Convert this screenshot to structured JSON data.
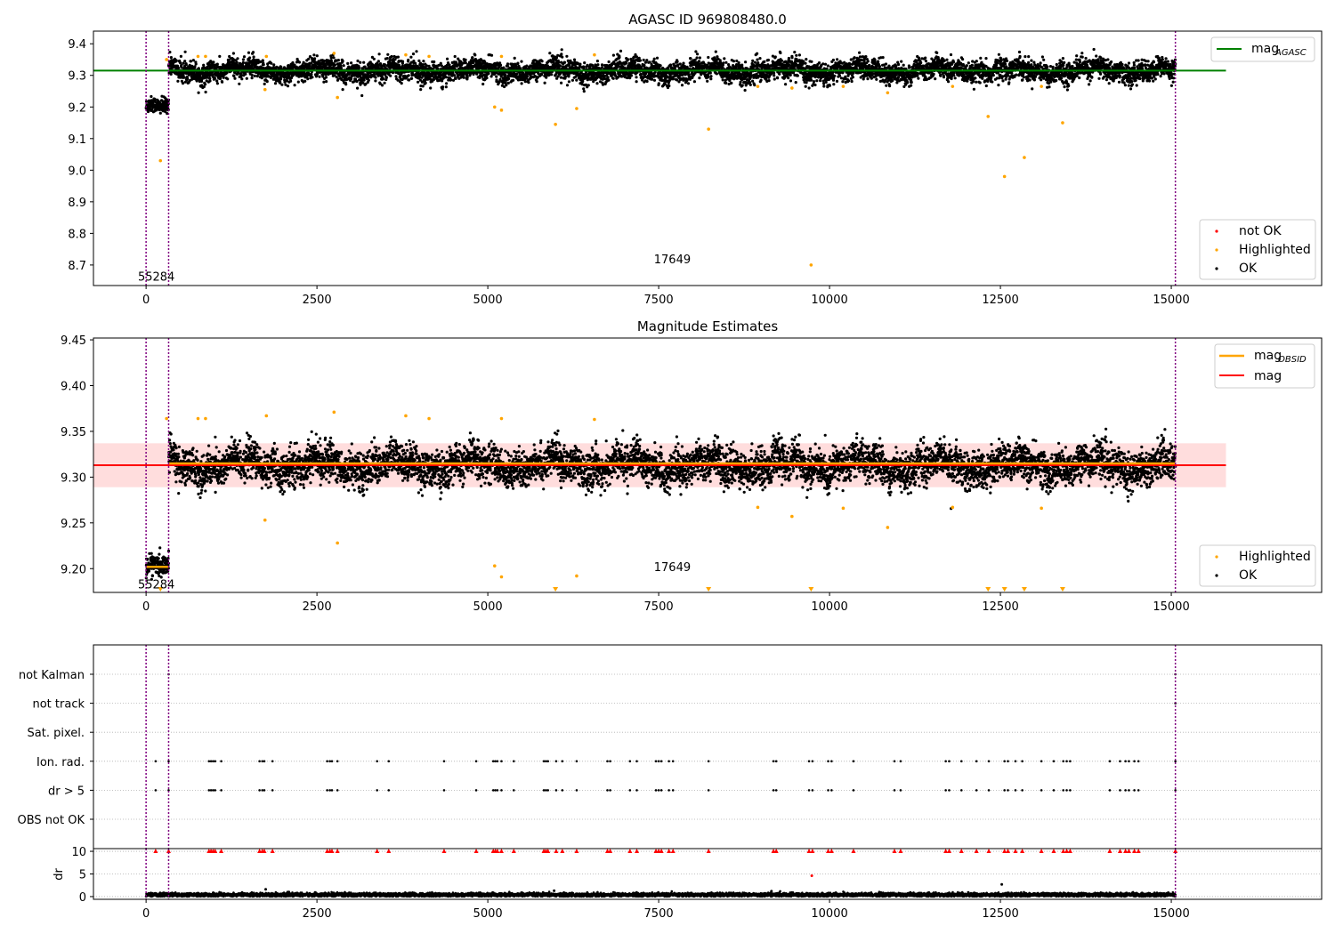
{
  "figure": {
    "colors": {
      "ok": "#000000",
      "highlighted": "#ffa500",
      "not_ok": "#ff0000",
      "agasc_line": "#008000",
      "obsid_line": "#ffa500",
      "mag_line": "#ff0000",
      "mag_band": "#ffdddd",
      "obsid_boundary": "#800080",
      "grid": "#b0b0b0"
    }
  },
  "chart_data": [
    {
      "id": "top",
      "type": "scatter",
      "title": "AGASC ID 969808480.0",
      "xlabel": "",
      "ylabel": "",
      "xlim": [
        -770,
        17200
      ],
      "ylim": [
        8.635,
        9.44
      ],
      "x_ticks": [
        0,
        2500,
        5000,
        7500,
        10000,
        12500,
        15000
      ],
      "x_tick_labels": [
        "0",
        "2500",
        "5000",
        "7500",
        "10000",
        "12500",
        "15000"
      ],
      "y_ticks": [
        8.7,
        8.8,
        8.9,
        9.0,
        9.1,
        9.2,
        9.3,
        9.4
      ],
      "y_tick_labels": [
        "8.7",
        "8.8",
        "8.9",
        "9.0",
        "9.1",
        "9.2",
        "9.3",
        "9.4"
      ],
      "obsid_boundaries": [
        0,
        330,
        15060
      ],
      "obsid_labels": [
        {
          "text": "55284",
          "x": 150,
          "y": 8.665
        },
        {
          "text": "17649",
          "x": 7700,
          "y": 8.72
        }
      ],
      "mag_agasc": 9.315,
      "mag_agasc_xrange": [
        -770,
        15800
      ],
      "segments": [
        {
          "x_start": 0,
          "x_end": 330,
          "center": 9.2,
          "spread": 0.022
        },
        {
          "x_start": 330,
          "x_end": 15060,
          "center": 9.315,
          "spread": 0.03
        }
      ],
      "highlighted_points": [
        {
          "x": 210,
          "y": 9.03
        },
        {
          "x": 300,
          "y": 9.35
        },
        {
          "x": 760,
          "y": 9.36
        },
        {
          "x": 870,
          "y": 9.36
        },
        {
          "x": 1740,
          "y": 9.255
        },
        {
          "x": 1760,
          "y": 9.36
        },
        {
          "x": 2750,
          "y": 9.37
        },
        {
          "x": 2800,
          "y": 9.23
        },
        {
          "x": 3800,
          "y": 9.365
        },
        {
          "x": 4140,
          "y": 9.36
        },
        {
          "x": 5100,
          "y": 9.2
        },
        {
          "x": 5200,
          "y": 9.19
        },
        {
          "x": 5200,
          "y": 9.36
        },
        {
          "x": 5990,
          "y": 9.145
        },
        {
          "x": 6300,
          "y": 9.195
        },
        {
          "x": 6560,
          "y": 9.365
        },
        {
          "x": 8230,
          "y": 9.13
        },
        {
          "x": 8950,
          "y": 9.265
        },
        {
          "x": 9450,
          "y": 9.26
        },
        {
          "x": 9730,
          "y": 8.7
        },
        {
          "x": 10200,
          "y": 9.265
        },
        {
          "x": 10850,
          "y": 9.245
        },
        {
          "x": 11800,
          "y": 9.265
        },
        {
          "x": 12320,
          "y": 9.17
        },
        {
          "x": 12560,
          "y": 8.98
        },
        {
          "x": 12850,
          "y": 9.04
        },
        {
          "x": 13100,
          "y": 9.265
        },
        {
          "x": 13410,
          "y": 9.15
        }
      ],
      "legends": [
        {
          "position": "upper right",
          "entries": [
            {
              "kind": "line",
              "color_key": "agasc_line",
              "label": "mag",
              "sub": "AGASC"
            }
          ]
        },
        {
          "position": "lower right",
          "entries": [
            {
              "kind": "dot",
              "color_key": "not_ok",
              "label": "not OK"
            },
            {
              "kind": "dot",
              "color_key": "highlighted",
              "label": "Highlighted"
            },
            {
              "kind": "dot",
              "color_key": "ok",
              "label": "OK"
            }
          ]
        }
      ]
    },
    {
      "id": "middle",
      "type": "scatter",
      "title": "Magnitude Estimates",
      "xlabel": "",
      "ylabel": "",
      "xlim": [
        -770,
        17200
      ],
      "ylim": [
        9.174,
        9.452
      ],
      "x_ticks": [
        0,
        2500,
        5000,
        7500,
        10000,
        12500,
        15000
      ],
      "x_tick_labels": [
        "0",
        "2500",
        "5000",
        "7500",
        "10000",
        "12500",
        "15000"
      ],
      "y_ticks": [
        9.2,
        9.25,
        9.3,
        9.35,
        9.4,
        9.45
      ],
      "y_tick_labels": [
        "9.20",
        "9.25",
        "9.30",
        "9.35",
        "9.40",
        "9.45"
      ],
      "obsid_boundaries": [
        0,
        330,
        15060
      ],
      "obsid_labels": [
        {
          "text": "55284",
          "x": 150,
          "y": 9.183
        },
        {
          "text": "17649",
          "x": 7700,
          "y": 9.202
        }
      ],
      "mag": 9.313,
      "mag_band": [
        9.289,
        9.337
      ],
      "mag_xrange": [
        -770,
        15800
      ],
      "mag_obsid": [
        {
          "x_start": 0,
          "x_end": 330,
          "y": 9.202
        },
        {
          "x_start": 330,
          "x_end": 15060,
          "y": 9.315
        }
      ],
      "segments": [
        {
          "x_start": 0,
          "x_end": 330,
          "center": 9.201,
          "spread": 0.01
        },
        {
          "x_start": 330,
          "x_end": 15060,
          "center": 9.313,
          "spread": 0.018
        }
      ],
      "highlighted_points": [
        {
          "x": 300,
          "y": 9.364
        },
        {
          "x": 760,
          "y": 9.364
        },
        {
          "x": 870,
          "y": 9.364
        },
        {
          "x": 1740,
          "y": 9.253
        },
        {
          "x": 1760,
          "y": 9.367
        },
        {
          "x": 2750,
          "y": 9.371
        },
        {
          "x": 2800,
          "y": 9.228
        },
        {
          "x": 3800,
          "y": 9.367
        },
        {
          "x": 4140,
          "y": 9.364
        },
        {
          "x": 5100,
          "y": 9.203
        },
        {
          "x": 5200,
          "y": 9.191
        },
        {
          "x": 5200,
          "y": 9.364
        },
        {
          "x": 6300,
          "y": 9.192
        },
        {
          "x": 6560,
          "y": 9.363
        },
        {
          "x": 8950,
          "y": 9.267
        },
        {
          "x": 9450,
          "y": 9.257
        },
        {
          "x": 10200,
          "y": 9.266
        },
        {
          "x": 10850,
          "y": 9.245
        },
        {
          "x": 11800,
          "y": 9.267
        },
        {
          "x": 13100,
          "y": 9.266
        }
      ],
      "offscale_points_x": [
        210,
        5990,
        8230,
        9730,
        12320,
        12560,
        12850,
        13410
      ],
      "legends": [
        {
          "position": "upper right",
          "entries": [
            {
              "kind": "line",
              "color_key": "obsid_line",
              "label": "mag",
              "sub": "OBSID"
            },
            {
              "kind": "line",
              "color_key": "mag_line",
              "label": "mag"
            }
          ]
        },
        {
          "position": "lower right",
          "entries": [
            {
              "kind": "dot",
              "color_key": "highlighted",
              "label": "Highlighted"
            },
            {
              "kind": "dot",
              "color_key": "ok",
              "label": "OK"
            }
          ]
        }
      ]
    },
    {
      "id": "flags",
      "type": "scatter",
      "title": "",
      "xlabel": "",
      "ylabel": "",
      "xlim": [
        -770,
        17200
      ],
      "y_categories": [
        "not Kalman",
        "not track",
        "Sat. pixel.",
        "Ion. rad.",
        "dr > 5",
        "OBS not OK"
      ],
      "obsid_boundaries": [
        0,
        330,
        15060
      ],
      "flag_rows": [
        {
          "category": "not Kalman",
          "x": [
            330,
            15060
          ]
        },
        {
          "category": "not track",
          "x": [
            15060
          ]
        },
        {
          "category": "Sat. pixel.",
          "x": []
        },
        {
          "category": "Ion. rad.",
          "x": [
            140,
            330,
            920,
            950,
            980,
            1010,
            1100,
            1660,
            1700,
            1730,
            1850,
            2650,
            2690,
            2720,
            2800,
            3380,
            3550,
            4360,
            4830,
            5080,
            5110,
            5140,
            5200,
            5380,
            5820,
            5850,
            5880,
            6000,
            6090,
            6300,
            6750,
            6790,
            7080,
            7180,
            7460,
            7500,
            7540,
            7650,
            7710,
            8230,
            9180,
            9220,
            9700,
            9750,
            9980,
            10030,
            10350,
            10950,
            11040,
            11700,
            11750,
            11930,
            12150,
            12330,
            12560,
            12610,
            12720,
            12820,
            13100,
            13280,
            13420,
            13470,
            13520,
            14100,
            14250,
            14330,
            14380,
            14460,
            14520,
            15060
          ]
        },
        {
          "category": "dr > 5",
          "x": [
            140,
            330,
            920,
            950,
            980,
            1010,
            1100,
            1660,
            1700,
            1730,
            1850,
            2650,
            2690,
            2720,
            2800,
            3380,
            3550,
            4360,
            4830,
            5080,
            5110,
            5140,
            5200,
            5380,
            5820,
            5850,
            5880,
            6000,
            6090,
            6300,
            6750,
            6790,
            7080,
            7180,
            7460,
            7500,
            7540,
            7650,
            7710,
            8230,
            9180,
            9220,
            9700,
            9750,
            9980,
            10030,
            10350,
            10950,
            11040,
            11700,
            11750,
            11930,
            12150,
            12330,
            12560,
            12610,
            12720,
            12820,
            13100,
            13280,
            13420,
            13470,
            13520,
            14100,
            14250,
            14330,
            14380,
            14460,
            14520,
            15060
          ]
        },
        {
          "category": "OBS not OK",
          "x": []
        }
      ]
    },
    {
      "id": "dr",
      "type": "scatter",
      "title": "",
      "xlabel": "",
      "ylabel": "dr",
      "xlim": [
        -770,
        17200
      ],
      "ylim": [
        -0.6,
        10.6
      ],
      "x_ticks": [
        0,
        2500,
        5000,
        7500,
        10000,
        12500,
        15000
      ],
      "x_tick_labels": [
        "0",
        "2500",
        "5000",
        "7500",
        "10000",
        "12500",
        "15000"
      ],
      "y_ticks": [
        0,
        5,
        10
      ],
      "y_tick_labels": [
        "0",
        "5",
        "10"
      ],
      "obsid_boundaries": [
        0,
        330,
        15060
      ],
      "baseline": {
        "x_start": 0,
        "x_end": 15060,
        "center": 0.4,
        "spread": 0.35
      },
      "capped_value": 10,
      "capped_x": [
        140,
        330,
        920,
        950,
        980,
        1010,
        1100,
        1660,
        1700,
        1730,
        1850,
        2650,
        2690,
        2720,
        2800,
        3380,
        3550,
        4360,
        4830,
        5080,
        5110,
        5140,
        5200,
        5380,
        5820,
        5850,
        5880,
        6000,
        6090,
        6300,
        6750,
        6790,
        7080,
        7180,
        7460,
        7500,
        7540,
        7650,
        7710,
        8230,
        9180,
        9220,
        9700,
        9750,
        9980,
        10030,
        10350,
        10950,
        11040,
        11700,
        11750,
        11930,
        12150,
        12330,
        12560,
        12610,
        12720,
        12820,
        13100,
        13280,
        13420,
        13470,
        13520,
        14100,
        14250,
        14330,
        14380,
        14460,
        14520,
        15060
      ],
      "extra_points": [
        {
          "x": 9740,
          "y": 4.6,
          "status": "not_ok"
        },
        {
          "x": 12520,
          "y": 2.7,
          "status": "ok"
        },
        {
          "x": 1750,
          "y": 1.6,
          "status": "ok"
        },
        {
          "x": 5970,
          "y": 1.3,
          "status": "ok"
        },
        {
          "x": 9150,
          "y": 1.2,
          "status": "ok"
        }
      ]
    }
  ]
}
